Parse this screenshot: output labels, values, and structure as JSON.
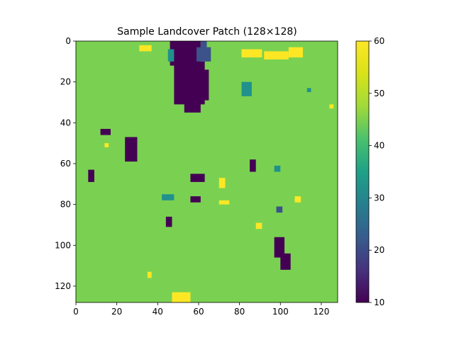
{
  "figure": {
    "title": "Sample Landcover Patch (128×128)"
  },
  "colors": {
    "background_class": "#7ad151",
    "dark_patch": "#440154",
    "indigo_patch": "#3b528b",
    "teal_patch": "#21918c",
    "yellow_patch": "#fde725"
  },
  "chart_data": {
    "type": "heatmap",
    "title": "Sample Landcover Patch (128×128)",
    "xlabel": "",
    "ylabel": "",
    "grid": false,
    "xlim": [
      0,
      128
    ],
    "ylim": [
      128,
      0
    ],
    "x_ticks": [
      0,
      20,
      40,
      60,
      80,
      100,
      120
    ],
    "y_ticks": [
      0,
      20,
      40,
      60,
      80,
      100,
      120
    ],
    "colorbar": {
      "min": 10,
      "max": 60,
      "ticks": [
        10,
        20,
        30,
        40,
        50,
        60
      ],
      "colormap": "viridis",
      "placement": "right"
    },
    "background_value": 50,
    "patches": [
      {
        "value": 10,
        "x0": 46,
        "y0": 0,
        "x1": 61,
        "y1": 12
      },
      {
        "value": 10,
        "x0": 48,
        "y0": 10,
        "x1": 63,
        "y1": 31
      },
      {
        "value": 10,
        "x0": 53,
        "y0": 29,
        "x1": 61,
        "y1": 35
      },
      {
        "value": 10,
        "x0": 61,
        "y0": 14,
        "x1": 65,
        "y1": 29
      },
      {
        "value": 10,
        "x0": 12,
        "y0": 43,
        "x1": 17,
        "y1": 46
      },
      {
        "value": 10,
        "x0": 24,
        "y0": 47,
        "x1": 30,
        "y1": 59
      },
      {
        "value": 10,
        "x0": 6,
        "y0": 63,
        "x1": 9,
        "y1": 69
      },
      {
        "value": 10,
        "x0": 56,
        "y0": 65,
        "x1": 63,
        "y1": 69
      },
      {
        "value": 10,
        "x0": 85,
        "y0": 58,
        "x1": 88,
        "y1": 64
      },
      {
        "value": 10,
        "x0": 56,
        "y0": 76,
        "x1": 61,
        "y1": 79
      },
      {
        "value": 10,
        "x0": 44,
        "y0": 86,
        "x1": 47,
        "y1": 91
      },
      {
        "value": 10,
        "x0": 97,
        "y0": 96,
        "x1": 102,
        "y1": 106
      },
      {
        "value": 10,
        "x0": 100,
        "y0": 104,
        "x1": 105,
        "y1": 112
      },
      {
        "value": 20,
        "x0": 59,
        "y0": 3,
        "x1": 66,
        "y1": 10
      },
      {
        "value": 20,
        "x0": 61,
        "y0": 0,
        "x1": 64,
        "y1": 4
      },
      {
        "value": 20,
        "x0": 98,
        "y0": 81,
        "x1": 101,
        "y1": 84
      },
      {
        "value": 40,
        "x0": 81,
        "y0": 20,
        "x1": 86,
        "y1": 27
      },
      {
        "value": 40,
        "x0": 45,
        "y0": 4,
        "x1": 48,
        "y1": 10
      },
      {
        "value": 40,
        "x0": 42,
        "y0": 75,
        "x1": 48,
        "y1": 78
      },
      {
        "value": 40,
        "x0": 97,
        "y0": 61,
        "x1": 100,
        "y1": 64
      },
      {
        "value": 40,
        "x0": 113,
        "y0": 23,
        "x1": 115,
        "y1": 25
      },
      {
        "value": 60,
        "x0": 31,
        "y0": 2,
        "x1": 37,
        "y1": 5
      },
      {
        "value": 60,
        "x0": 81,
        "y0": 4,
        "x1": 91,
        "y1": 8
      },
      {
        "value": 60,
        "x0": 92,
        "y0": 5,
        "x1": 104,
        "y1": 9
      },
      {
        "value": 60,
        "x0": 104,
        "y0": 3,
        "x1": 111,
        "y1": 8
      },
      {
        "value": 60,
        "x0": 70,
        "y0": 67,
        "x1": 73,
        "y1": 72
      },
      {
        "value": 60,
        "x0": 70,
        "y0": 78,
        "x1": 75,
        "y1": 80
      },
      {
        "value": 60,
        "x0": 88,
        "y0": 89,
        "x1": 91,
        "y1": 92
      },
      {
        "value": 60,
        "x0": 107,
        "y0": 76,
        "x1": 110,
        "y1": 79
      },
      {
        "value": 60,
        "x0": 47,
        "y0": 123,
        "x1": 56,
        "y1": 128
      },
      {
        "value": 60,
        "x0": 35,
        "y0": 113,
        "x1": 37,
        "y1": 116
      },
      {
        "value": 60,
        "x0": 14,
        "y0": 50,
        "x1": 16,
        "y1": 52
      },
      {
        "value": 60,
        "x0": 124,
        "y0": 31,
        "x1": 126,
        "y1": 33
      }
    ]
  }
}
